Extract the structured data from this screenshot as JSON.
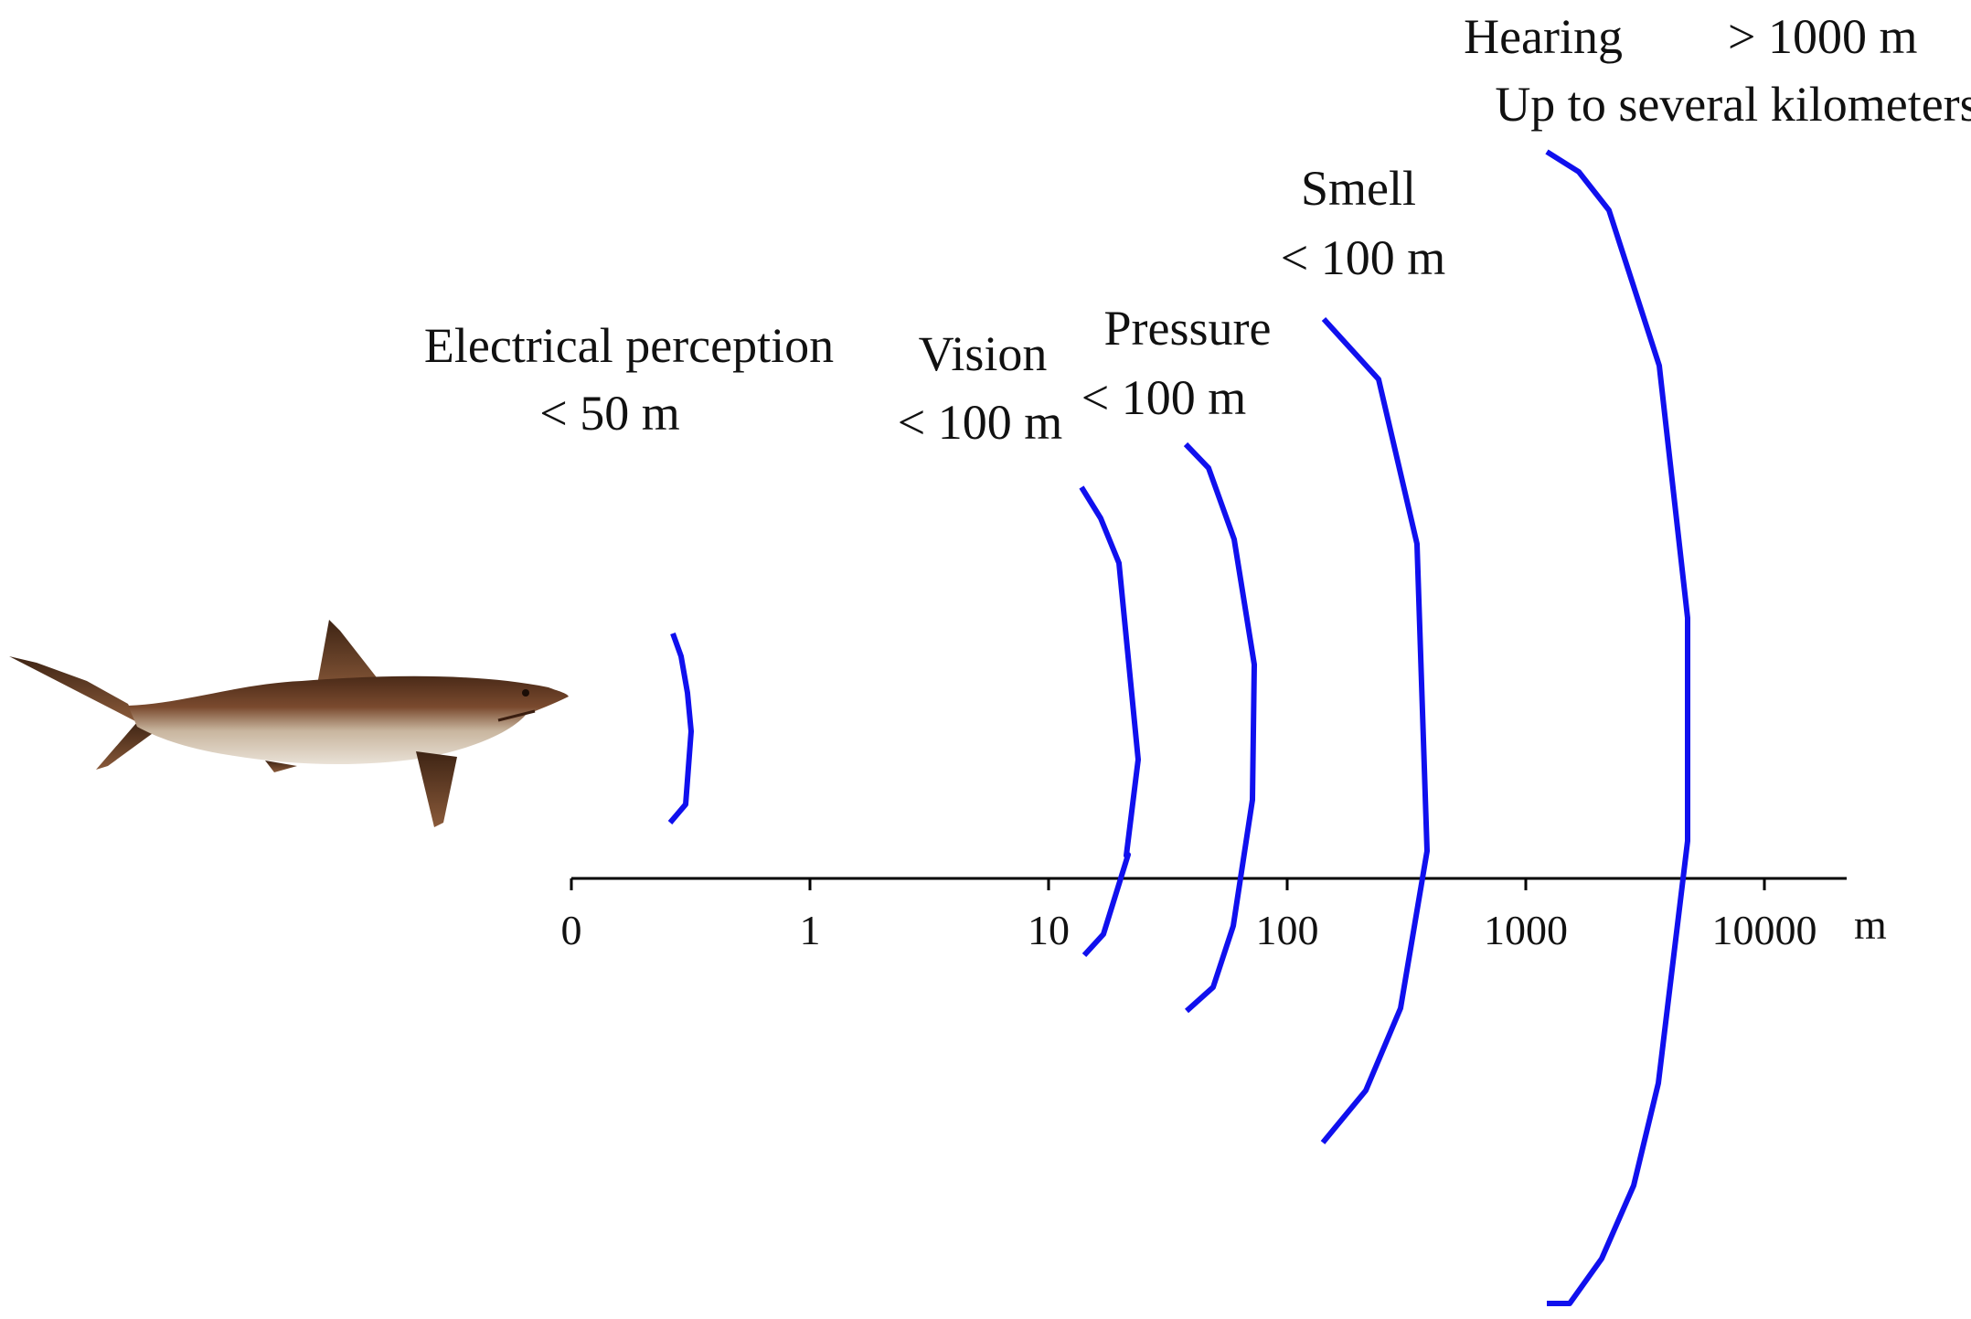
{
  "axis": {
    "unit": "m",
    "ticks": [
      "0",
      "1",
      "10",
      "100",
      "1000",
      "10000"
    ]
  },
  "senses": [
    {
      "id": "electrical",
      "name": "Electrical perception",
      "range": "< 50 m"
    },
    {
      "id": "vision",
      "name": "Vision",
      "range": "< 100 m"
    },
    {
      "id": "pressure",
      "name": "Pressure",
      "range": "< 100 m"
    },
    {
      "id": "smell",
      "name": "Smell",
      "range": "< 100 m"
    },
    {
      "id": "hearing",
      "name": "Hearing",
      "range": "> 1000 m",
      "note": "Up to several kilometers"
    }
  ],
  "colors": {
    "arc": "#1010ee",
    "axis": "#000000",
    "text": "#111111"
  },
  "icons": {
    "animal": "shark-icon"
  }
}
